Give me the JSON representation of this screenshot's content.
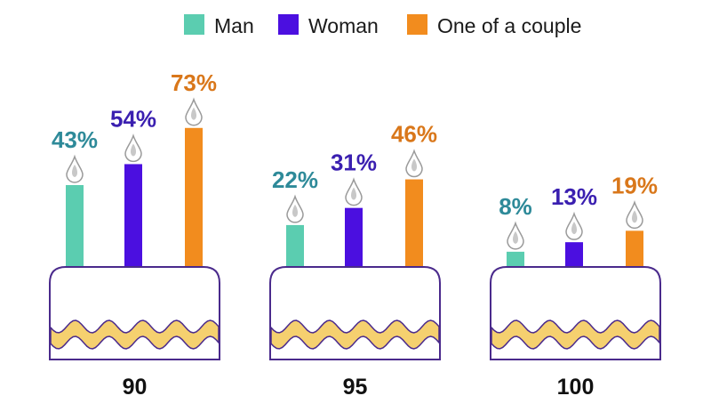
{
  "chart_data": {
    "type": "bar",
    "categories": [
      "90",
      "95",
      "100"
    ],
    "series": [
      {
        "name": "Man",
        "values": [
          43,
          22,
          8
        ],
        "labels": [
          "43%",
          "22%",
          "8%"
        ],
        "color": "#5BCDB0",
        "label_color": "#2E8A99"
      },
      {
        "name": "Woman",
        "values": [
          54,
          31,
          13
        ],
        "labels": [
          "54%",
          "31%",
          "13%"
        ],
        "color": "#4B0FE0",
        "label_color": "#3A1FB0"
      },
      {
        "name": "One of a couple",
        "values": [
          73,
          46,
          19
        ],
        "labels": [
          "73%",
          "46%",
          "19%"
        ],
        "color": "#F28C1E",
        "label_color": "#D9771A"
      }
    ],
    "ylim": [
      0,
      100
    ],
    "legend_position": "top-center",
    "style": "birthday-cake-candles",
    "cake_colors": {
      "outline": "#4A2A8C",
      "wave": "#F5D06F",
      "flame": "#C8C8C8"
    }
  }
}
